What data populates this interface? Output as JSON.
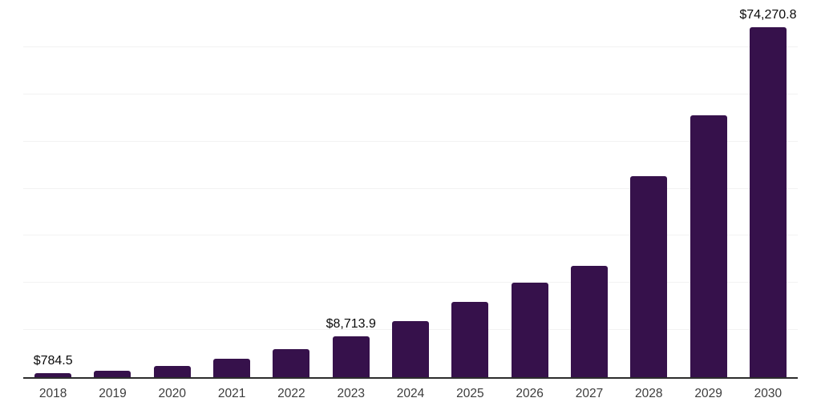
{
  "chart_data": {
    "type": "bar",
    "title": "",
    "xlabel": "",
    "ylabel": "",
    "categories": [
      "2018",
      "2019",
      "2020",
      "2021",
      "2022",
      "2023",
      "2024",
      "2025",
      "2026",
      "2027",
      "2028",
      "2029",
      "2030"
    ],
    "values": [
      784.5,
      1300,
      2400,
      3950,
      5950,
      8713.9,
      11950,
      15900,
      20000,
      23550,
      42600,
      55500,
      74270.8
    ],
    "value_labels": [
      "$784.5",
      "",
      "",
      "",
      "",
      "$8,713.9",
      "",
      "",
      "",
      "",
      "",
      "",
      "$74,270.8"
    ],
    "ylim": [
      0,
      80000
    ],
    "grid_step": 10000,
    "grid": true,
    "legend": false,
    "colors": {
      "bar": "#36114B",
      "gridline": "#f2f2f2",
      "axis": "#2d2d2d",
      "tick_label": "#3c3c3c",
      "value_label": "#0a0a0a",
      "background": "#ffffff"
    }
  }
}
